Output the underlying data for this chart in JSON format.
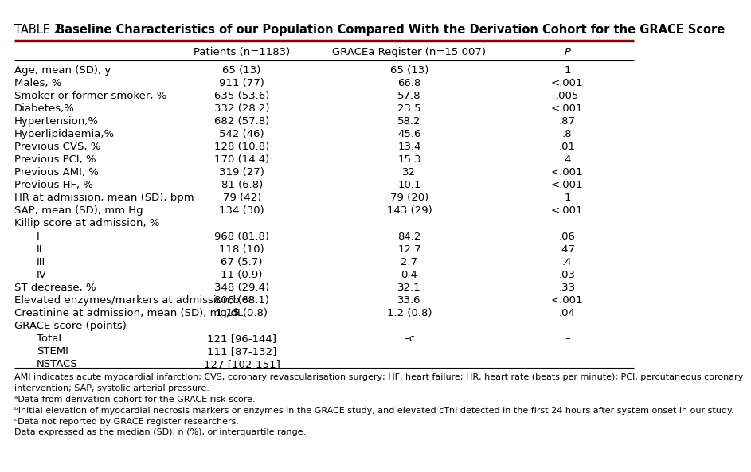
{
  "title_prefix": "TABLE 2.",
  "title_bold": " Baseline Characteristics of our Population Compared With the Derivation Cohort for the GRACE Score",
  "col_headers": [
    "",
    "Patients (n=1183)",
    "GRACEa Register (n=15 007)",
    "P"
  ],
  "rows": [
    {
      "label": "Age, mean (SD), y",
      "indent": false,
      "col2": "65 (13)",
      "col3": "65 (13)",
      "col4": "1"
    },
    {
      "label": "Males, %",
      "indent": false,
      "col2": "911 (77)",
      "col3": "66.8",
      "col4": "<.001"
    },
    {
      "label": "Smoker or former smoker, %",
      "indent": false,
      "col2": "635 (53.6)",
      "col3": "57.8",
      "col4": ".005"
    },
    {
      "label": "Diabetes,%",
      "indent": false,
      "col2": "332 (28.2)",
      "col3": "23.5",
      "col4": "<.001"
    },
    {
      "label": "Hypertension,%",
      "indent": false,
      "col2": "682 (57.8)",
      "col3": "58.2",
      "col4": ".87"
    },
    {
      "label": "Hyperlipidaemia,%",
      "indent": false,
      "col2": "542 (46)",
      "col3": "45.6",
      "col4": ".8"
    },
    {
      "label": "Previous CVS, %",
      "indent": false,
      "col2": "128 (10.8)",
      "col3": "13.4",
      "col4": ".01"
    },
    {
      "label": "Previous PCI, %",
      "indent": false,
      "col2": "170 (14.4)",
      "col3": "15.3",
      "col4": ".4"
    },
    {
      "label": "Previous AMI, %",
      "indent": false,
      "col2": "319 (27)",
      "col3": "32",
      "col4": "<.001"
    },
    {
      "label": "Previous HF, %",
      "indent": false,
      "col2": "81 (6.8)",
      "col3": "10.1",
      "col4": "<.001"
    },
    {
      "label": "HR at admission, mean (SD), bpm",
      "indent": false,
      "col2": "79 (42)",
      "col3": "79 (20)",
      "col4": "1"
    },
    {
      "label": "SAP, mean (SD), mm Hg",
      "indent": false,
      "col2": "134 (30)",
      "col3": "143 (29)",
      "col4": "<.001"
    },
    {
      "label": "Killip score at admission, %",
      "indent": false,
      "col2": "",
      "col3": "",
      "col4": ""
    },
    {
      "label": "I",
      "indent": true,
      "col2": "968 (81.8)",
      "col3": "84.2",
      "col4": ".06"
    },
    {
      "label": "II",
      "indent": true,
      "col2": "118 (10)",
      "col3": "12.7",
      "col4": ".47"
    },
    {
      "label": "III",
      "indent": true,
      "col2": "67 (5.7)",
      "col3": "2.7",
      "col4": ".4"
    },
    {
      "label": "IV",
      "indent": true,
      "col2": "11 (0.9)",
      "col3": "0.4",
      "col4": ".03"
    },
    {
      "label": "ST decrease, %",
      "indent": false,
      "col2": "348 (29.4)",
      "col3": "32.1",
      "col4": ".33"
    },
    {
      "label": "Elevated enzymes/markers at admission,b %",
      "indent": false,
      "col2": "806 (68.1)",
      "col3": "33.6",
      "col4": "<.001"
    },
    {
      "label": "Creatinine at admission, mean (SD), mg/dL",
      "indent": false,
      "col2": "1.15 (0.8)",
      "col3": "1.2 (0.8)",
      "col4": ".04"
    },
    {
      "label": "GRACE score (points)",
      "indent": false,
      "col2": "",
      "col3": "",
      "col4": ""
    },
    {
      "label": "Total",
      "indent": true,
      "col2": "121 [96-144]",
      "col3": "–c",
      "col4": "–"
    },
    {
      "label": "STEMI",
      "indent": true,
      "col2": "111 [87-132]",
      "col3": "",
      "col4": ""
    },
    {
      "label": "NSTACS",
      "indent": true,
      "col2": "127 [102-151]",
      "col3": "",
      "col4": ""
    }
  ],
  "footnotes": [
    "AMI indicates acute myocardial infarction; CVS, coronary revascularisation surgery; HF, heart failure; HR, heart rate (beats per minute); PCI, percutaneous coronary",
    "intervention; SAP, systolic arterial pressure.",
    "ᵃData from derivation cohort for the GRACE risk score.",
    "ᵇInitial elevation of myocardial necrosis markers or enzymes in the GRACE study, and elevated cTnI detected in the first 24 hours after system onset in our study.",
    "ᶜData not reported by GRACE register researchers.",
    "Data expressed as the median (SD), n (%), or interquartile range."
  ],
  "bg_color": "#ffffff",
  "header_line_color": "#8B0000",
  "line_color": "#000000",
  "font_size": 9.5,
  "header_font_size": 9.5,
  "title_font_size": 10.5
}
